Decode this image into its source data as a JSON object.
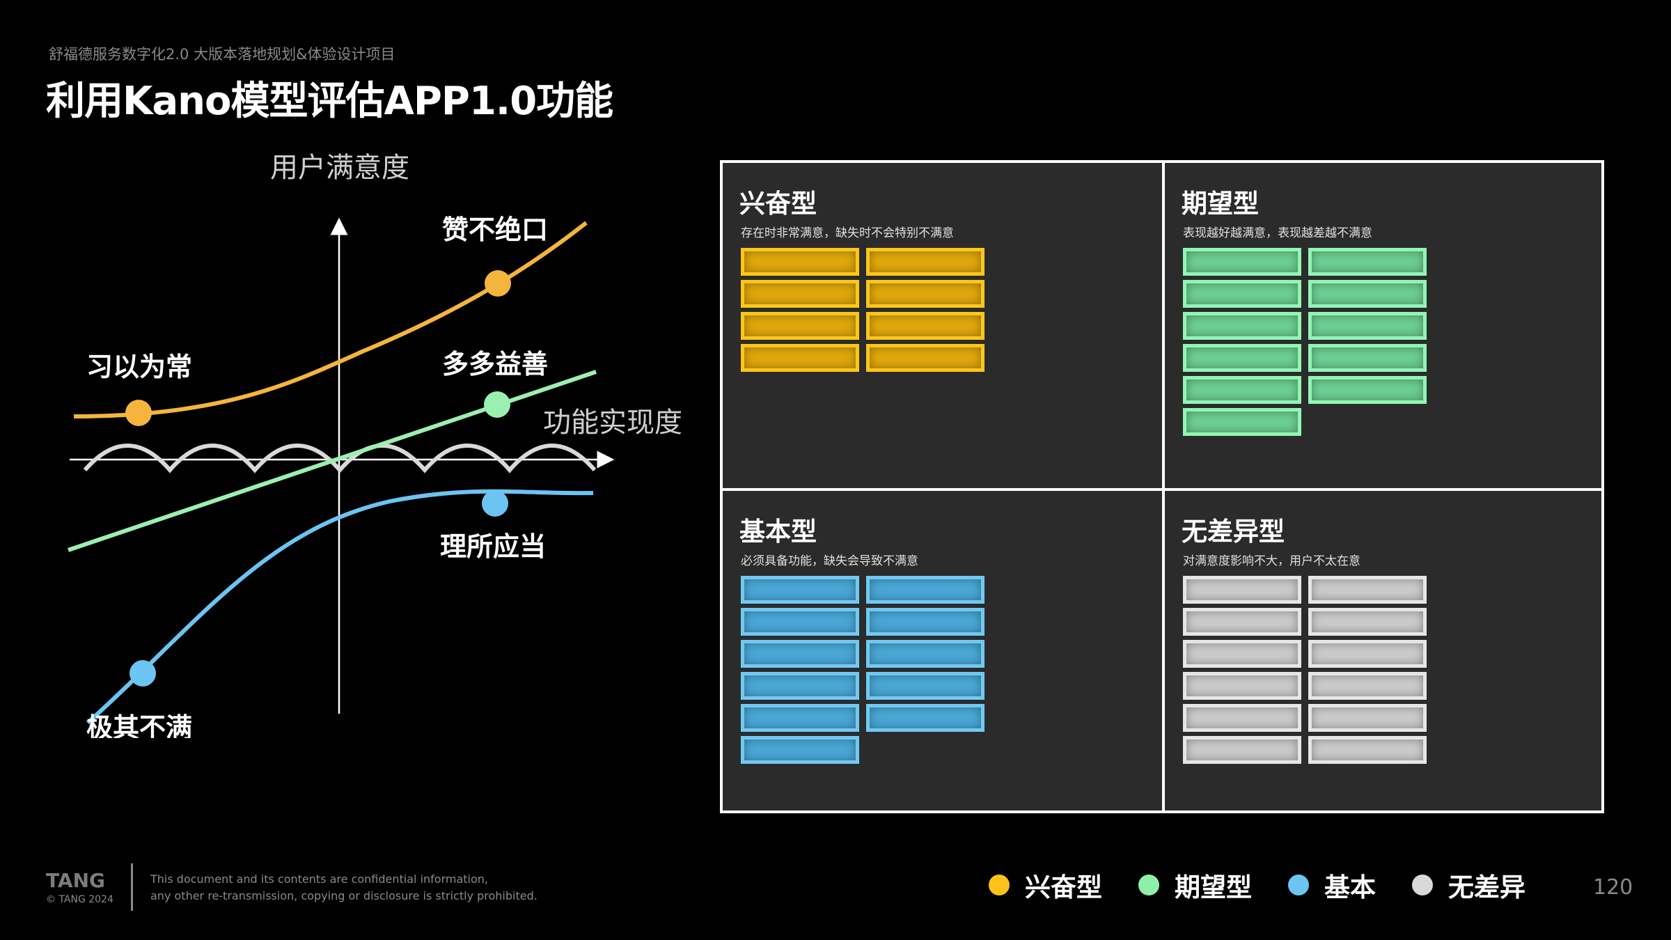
{
  "header": {
    "subtitle": "舒福德服务数字化2.0 大版本落地规划&体验设计项目",
    "title": "利用Kano模型评估APP1.0功能"
  },
  "kano": {
    "y_axis_label": "用户满意度",
    "x_axis_label": "功能实现度",
    "curves": [
      {
        "name": "excitement",
        "color": "#f5b53c",
        "labels": [
          "习以为常",
          "赞不绝口"
        ]
      },
      {
        "name": "performance",
        "color": "#9af0b0",
        "labels": [
          "多多益善"
        ]
      },
      {
        "name": "basic",
        "color": "#6cc4f2",
        "labels": [
          "极其不满",
          "理所应当"
        ]
      },
      {
        "name": "indifferent",
        "color": "#d9d9d9",
        "labels": []
      }
    ]
  },
  "quadrants": [
    {
      "id": "excitement",
      "title": "兴奋型",
      "desc": "存在时非常满意，缺失时不会特别不满意",
      "color": "yellow",
      "card_count": 8,
      "card_labels": []
    },
    {
      "id": "performance",
      "title": "期望型",
      "desc": "表现越好越满意，表现越差越不满意",
      "color": "green",
      "card_count": 11,
      "card_labels": []
    },
    {
      "id": "basic",
      "title": "基本型",
      "desc": "必须具备功能，缺失会导致不满意",
      "color": "blue",
      "card_count": 11,
      "card_labels": []
    },
    {
      "id": "indifferent",
      "title": "无差异型",
      "desc": "对满意度影响不大，用户不太在意",
      "color": "gray",
      "card_count": 12,
      "card_labels": []
    }
  ],
  "legend": [
    {
      "label": "兴奋型",
      "color": "#ffc21a"
    },
    {
      "label": "期望型",
      "color": "#8ef0a8"
    },
    {
      "label": "基本",
      "color": "#6cc4f2"
    },
    {
      "label": "无差异",
      "color": "#d9d9d9"
    }
  ],
  "footer": {
    "brand": "TANG",
    "copyright": "© TANG 2024",
    "disclaimer_line1": "This document and its contents are confidential information,",
    "disclaimer_line2": "any other re-transmission, copying or disclosure is strictly prohibited.",
    "page_number": "120"
  }
}
